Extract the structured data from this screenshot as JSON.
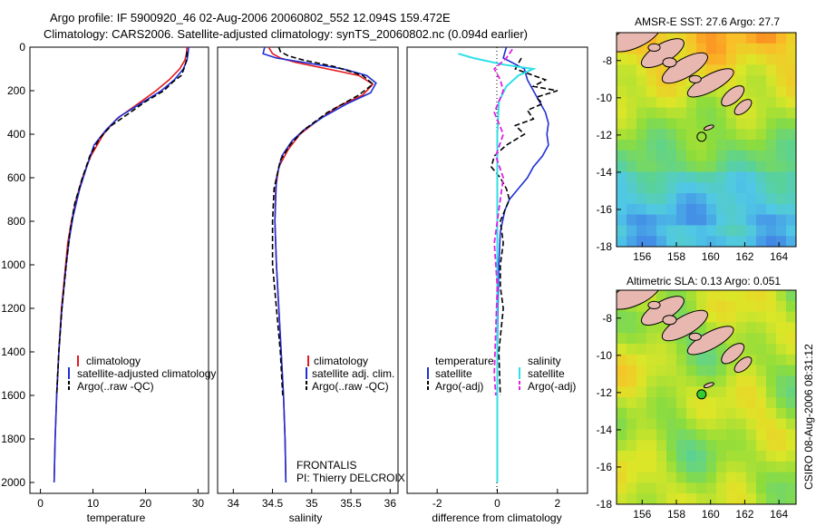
{
  "header": {
    "line1": "Argo profile: IF 5900920_46 02-Aug-2006 20060802_552 12.094S 159.472E",
    "line2": "Climatology: CARS2006. Satellite-adjusted climatology: synTS_20060802.nc (0.094d earlier)"
  },
  "side_credit": "CSIRO 08-Aug-2006 08:31:12",
  "colors": {
    "climatology": "#e41a1c",
    "satellite": "#1f2fd6",
    "argo": "#000000",
    "satellite_salinity": "#2fe0e8",
    "argo_salinity": "#e020e0",
    "land": "#e8b8b0"
  },
  "depth_axis": {
    "ylim": [
      2050,
      0
    ],
    "ticks": [
      0,
      200,
      400,
      600,
      800,
      1000,
      1200,
      1400,
      1600,
      1800,
      2000
    ]
  },
  "panels": {
    "temperature": {
      "xlabel": "temperature",
      "xticks": [
        0,
        10,
        20,
        30
      ],
      "legend": [
        "climatology",
        "satellite-adjusted climatology",
        "Argo(..raw -QC)"
      ]
    },
    "salinity": {
      "xlabel": "salinity",
      "xticks": [
        34,
        34.5,
        35,
        35.5,
        36
      ],
      "legend": [
        "climatology",
        "satellite adj. clim.",
        "Argo(..raw -QC)"
      ],
      "annotation": [
        "FRONTALIS",
        "PI: Thierry DELCROIX"
      ]
    },
    "difference": {
      "xlabel": "difference from climatology",
      "xticks": [
        -2,
        0,
        2
      ],
      "legend_headers": [
        "temperature",
        "salinity"
      ],
      "legend_left": [
        "satellite",
        "Argo(-adj)"
      ],
      "legend_right": [
        "satellite",
        "Argo(-adj)"
      ]
    }
  },
  "maps": {
    "sst": {
      "title": "AMSR-E SST: 27.6 Argo: 27.7"
    },
    "sla": {
      "title": "Altimetric SLA: 0.13 Argo: 0.051"
    },
    "xticks": [
      156,
      158,
      160,
      162,
      164
    ],
    "yticks": [
      -8,
      -10,
      -12,
      -14,
      -16,
      -18
    ],
    "xlim": [
      154.5,
      165
    ],
    "ylim": [
      -18,
      -6.5
    ],
    "float_position": {
      "lon": 159.472,
      "lat": -12.094
    }
  },
  "chart_data": [
    {
      "type": "line",
      "name": "temperature",
      "xlabel": "temperature",
      "ylabel": "",
      "xlim": [
        -2,
        32
      ],
      "ylim": [
        2050,
        0
      ],
      "series": [
        {
          "name": "climatology",
          "points": [
            [
              27.9,
              0
            ],
            [
              27.8,
              30
            ],
            [
              27.5,
              60
            ],
            [
              26.5,
              100
            ],
            [
              24.5,
              150
            ],
            [
              22,
              200
            ],
            [
              18,
              270
            ],
            [
              14.5,
              330
            ],
            [
              12,
              400
            ],
            [
              9.6,
              500
            ],
            [
              8,
              600
            ],
            [
              6.8,
              700
            ],
            [
              5.9,
              800
            ],
            [
              5.2,
              900
            ],
            [
              4.8,
              1000
            ],
            [
              4,
              1200
            ],
            [
              3.5,
              1400
            ],
            [
              3.1,
              1600
            ],
            [
              2.8,
              1800
            ],
            [
              2.6,
              2000
            ]
          ]
        },
        {
          "name": "satellite-adjusted climatology",
          "points": [
            [
              28.2,
              0
            ],
            [
              28.1,
              30
            ],
            [
              27.9,
              60
            ],
            [
              27.2,
              100
            ],
            [
              25.5,
              150
            ],
            [
              23,
              200
            ],
            [
              19,
              260
            ],
            [
              15,
              320
            ],
            [
              12.5,
              380
            ],
            [
              10.2,
              450
            ],
            [
              8.8,
              550
            ],
            [
              7.5,
              650
            ],
            [
              6.2,
              780
            ],
            [
              5.5,
              880
            ],
            [
              4.9,
              1000
            ],
            [
              4.1,
              1200
            ],
            [
              3.5,
              1400
            ],
            [
              3.1,
              1600
            ],
            [
              2.8,
              1800
            ],
            [
              2.6,
              2000
            ]
          ]
        },
        {
          "name": "Argo(..raw -QC)",
          "points": [
            [
              27.9,
              20
            ],
            [
              27.8,
              60
            ],
            [
              27.3,
              100
            ],
            [
              26.8,
              130
            ],
            [
              25.2,
              160
            ],
            [
              23.5,
              200
            ],
            [
              20,
              250
            ],
            [
              16.5,
              310
            ],
            [
              13.5,
              360
            ],
            [
              11.2,
              420
            ],
            [
              9.4,
              500
            ],
            [
              8,
              600
            ],
            [
              6.5,
              720
            ],
            [
              5.6,
              850
            ],
            [
              4.9,
              1000
            ],
            [
              4.1,
              1200
            ],
            [
              3.5,
              1400
            ],
            [
              3.1,
              1600
            ]
          ]
        }
      ]
    },
    {
      "type": "line",
      "name": "salinity",
      "xlabel": "salinity",
      "ylabel": "",
      "xlim": [
        33.8,
        36.1
      ],
      "ylim": [
        2050,
        0
      ],
      "series": [
        {
          "name": "climatology",
          "points": [
            [
              34.45,
              0
            ],
            [
              34.5,
              30
            ],
            [
              34.6,
              50
            ],
            [
              34.8,
              70
            ],
            [
              35.2,
              100
            ],
            [
              35.6,
              130
            ],
            [
              35.78,
              170
            ],
            [
              35.65,
              220
            ],
            [
              35.35,
              270
            ],
            [
              35.1,
              330
            ],
            [
              34.85,
              400
            ],
            [
              34.7,
              470
            ],
            [
              34.58,
              550
            ],
            [
              34.54,
              650
            ],
            [
              34.53,
              800
            ],
            [
              34.55,
              1000
            ],
            [
              34.58,
              1200
            ],
            [
              34.61,
              1400
            ],
            [
              34.64,
              1600
            ],
            [
              34.66,
              1800
            ],
            [
              34.67,
              2000
            ]
          ]
        },
        {
          "name": "satellite adj. clim.",
          "points": [
            [
              34.4,
              0
            ],
            [
              34.38,
              30
            ],
            [
              34.55,
              50
            ],
            [
              34.9,
              70
            ],
            [
              35.4,
              100
            ],
            [
              35.7,
              130
            ],
            [
              35.82,
              165
            ],
            [
              35.75,
              210
            ],
            [
              35.45,
              260
            ],
            [
              35.15,
              320
            ],
            [
              34.9,
              380
            ],
            [
              34.75,
              430
            ],
            [
              34.62,
              500
            ],
            [
              34.55,
              600
            ],
            [
              34.53,
              800
            ],
            [
              34.55,
              1000
            ],
            [
              34.58,
              1200
            ],
            [
              34.61,
              1400
            ],
            [
              34.64,
              1600
            ],
            [
              34.66,
              1800
            ],
            [
              34.67,
              2000
            ]
          ]
        },
        {
          "name": "Argo(..raw -QC)",
          "points": [
            [
              34.58,
              0
            ],
            [
              34.6,
              20
            ],
            [
              34.7,
              40
            ],
            [
              34.9,
              60
            ],
            [
              35.3,
              90
            ],
            [
              35.65,
              130
            ],
            [
              35.78,
              170
            ],
            [
              35.6,
              220
            ],
            [
              35.4,
              260
            ],
            [
              35.2,
              300
            ],
            [
              34.9,
              380
            ],
            [
              34.72,
              450
            ],
            [
              34.6,
              520
            ],
            [
              34.52,
              650
            ],
            [
              34.5,
              800
            ],
            [
              34.5,
              1000
            ],
            [
              34.55,
              1200
            ],
            [
              34.6,
              1400
            ],
            [
              34.63,
              1600
            ]
          ]
        }
      ]
    },
    {
      "type": "line",
      "name": "difference",
      "xlabel": "difference from climatology",
      "ylabel": "",
      "xlim": [
        -3,
        3
      ],
      "ylim": [
        2050,
        0
      ],
      "series": [
        {
          "name": "temperature satellite",
          "points": [
            [
              0.3,
              0
            ],
            [
              0.2,
              50
            ],
            [
              0.9,
              100
            ],
            [
              1.0,
              150
            ],
            [
              1.2,
              200
            ],
            [
              1.4,
              250
            ],
            [
              1.6,
              300
            ],
            [
              1.7,
              350
            ],
            [
              1.65,
              400
            ],
            [
              1.7,
              450
            ],
            [
              1.5,
              500
            ],
            [
              1.2,
              550
            ],
            [
              1.0,
              600
            ],
            [
              0.7,
              650
            ],
            [
              0.4,
              700
            ],
            [
              0.25,
              750
            ],
            [
              0.1,
              850
            ],
            [
              0.05,
              1000
            ],
            [
              0.02,
              1200
            ],
            [
              0.0,
              1500
            ],
            [
              0.0,
              2000
            ]
          ]
        },
        {
          "name": "temperature Argo(-adj)",
          "points": [
            [
              0.8,
              50
            ],
            [
              0.6,
              100
            ],
            [
              1.6,
              150
            ],
            [
              1.2,
              180
            ],
            [
              2.0,
              200
            ],
            [
              1.3,
              230
            ],
            [
              1.5,
              260
            ],
            [
              1.0,
              290
            ],
            [
              1.2,
              330
            ],
            [
              0.6,
              360
            ],
            [
              0.9,
              400
            ],
            [
              0.3,
              450
            ],
            [
              -0.1,
              500
            ],
            [
              -0.2,
              550
            ],
            [
              0.1,
              600
            ],
            [
              0.3,
              650
            ],
            [
              0.4,
              700
            ],
            [
              0.1,
              800
            ],
            [
              0.2,
              900
            ],
            [
              0.1,
              1000
            ],
            [
              0.1,
              1100
            ],
            [
              0.2,
              1200
            ],
            [
              0.05,
              1400
            ],
            [
              0.1,
              1600
            ]
          ]
        },
        {
          "name": "salinity satellite",
          "points": [
            [
              -1.3,
              30
            ],
            [
              -0.8,
              50
            ],
            [
              0.2,
              80
            ],
            [
              1.2,
              100
            ],
            [
              0.7,
              130
            ],
            [
              0.3,
              180
            ],
            [
              0.05,
              250
            ],
            [
              0.0,
              400
            ],
            [
              0.0,
              1000
            ],
            [
              0.0,
              2000
            ]
          ]
        },
        {
          "name": "salinity Argo(-adj)",
          "points": [
            [
              0.5,
              10
            ],
            [
              0.3,
              50
            ],
            [
              -0.1,
              100
            ],
            [
              0.1,
              150
            ],
            [
              0.2,
              200
            ],
            [
              0.05,
              250
            ],
            [
              -0.1,
              300
            ],
            [
              0.2,
              400
            ],
            [
              -0.05,
              500
            ],
            [
              0.2,
              600
            ],
            [
              0.1,
              700
            ],
            [
              -0.1,
              900
            ],
            [
              0.0,
              1100
            ],
            [
              -0.05,
              1300
            ],
            [
              -0.1,
              1500
            ],
            [
              -0.05,
              1600
            ]
          ]
        }
      ]
    }
  ]
}
